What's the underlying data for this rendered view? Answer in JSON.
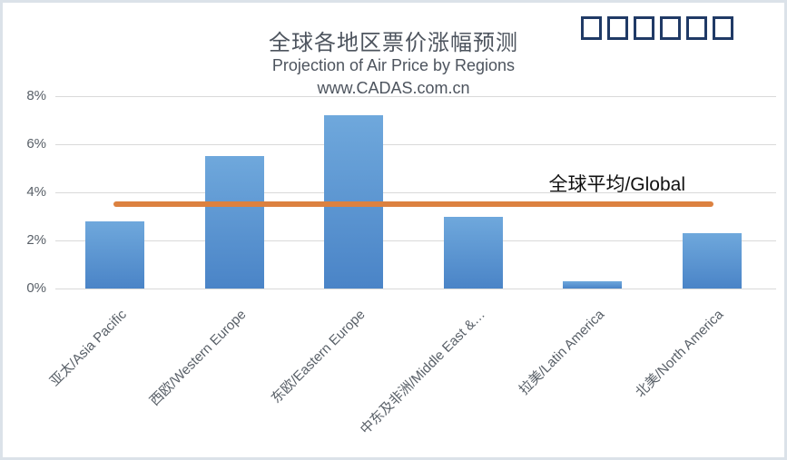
{
  "branding": {
    "logo_placeholder_boxes": 6
  },
  "chart_data": {
    "type": "bar",
    "title": "全球各地区票价涨幅预测",
    "subtitle": "Projection of Air Price by Regions",
    "source": "www.CADAS.com.cn",
    "categories": [
      "亚太/Asia Pacific",
      "西欧/Western Europe",
      "东欧/Eastern Europe",
      "中东及非洲/Middle East &…",
      "拉美/Latin America",
      "北美/North America"
    ],
    "values": [
      2.8,
      5.5,
      7.2,
      3.0,
      0.3,
      2.3
    ],
    "unit": "%",
    "xlabel": "",
    "ylabel": "",
    "ylim": [
      0,
      8
    ],
    "ytick_values": [
      0,
      2,
      4,
      6,
      8
    ],
    "yticks": [
      "0%",
      "2%",
      "4%",
      "6%",
      "8%"
    ],
    "grid": true,
    "legend": "none",
    "reference_line": {
      "label": "全球平均/Global",
      "value": 3.5
    },
    "style": {
      "bar_gradient_top": "#6fa8dc",
      "bar_gradient_bottom": "#4a84c7",
      "reference_line_color": "#dc8140",
      "reference_label_color": "#111111",
      "title_color": "#4d545e",
      "axis_text_color": "#596068",
      "gridline_color": "#d9d9d9",
      "logo_box_border_color": "#203a66"
    }
  }
}
